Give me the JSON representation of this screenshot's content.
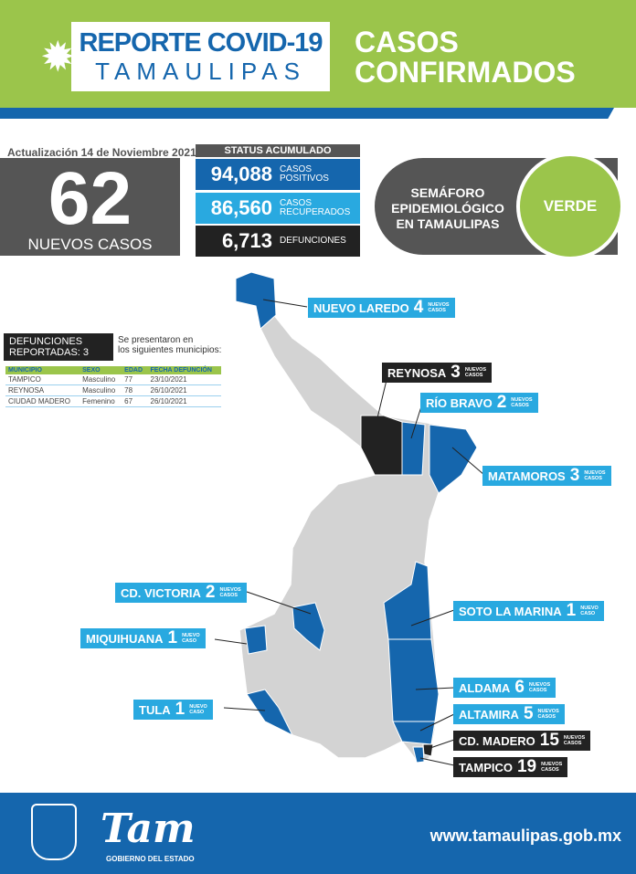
{
  "header": {
    "title_line1": "REPORTE COVID-19",
    "title_line2": "TAMAULIPAS",
    "subtitle_line1": "CASOS",
    "subtitle_line2": "CONFIRMADOS"
  },
  "update": "Actualización 14 de Noviembre 2021",
  "new_cases": {
    "value": "62",
    "label": "NUEVOS CASOS"
  },
  "status": {
    "title": "STATUS ACUMULADO",
    "items": [
      {
        "value": "94,088",
        "label1": "CASOS",
        "label2": "POSITIVOS",
        "color": "#1566ad"
      },
      {
        "value": "86,560",
        "label1": "CASOS",
        "label2": "RECUPERADOS",
        "color": "#29a9e0"
      },
      {
        "value": "6,713",
        "label1": "DEFUNCIONES",
        "label2": "",
        "color": "#222222"
      }
    ]
  },
  "semaforo": {
    "line1": "SEMÁFORO",
    "line2": "EPIDEMIOLÓGICO",
    "line3": "EN TAMAULIPAS",
    "status": "VERDE",
    "color": "#9bc54b"
  },
  "deaths": {
    "title1": "DEFUNCIONES",
    "title2": "REPORTADAS: 3",
    "note1": "Se presentaron en",
    "note2": "los siguientes municipios:",
    "columns": [
      "MUNICIPIO",
      "SEXO",
      "EDAD",
      "FECHA DEFUNCIÓN"
    ],
    "rows": [
      [
        "TAMPICO",
        "Masculino",
        "77",
        "23/10/2021"
      ],
      [
        "REYNOSA",
        "Masculino",
        "78",
        "26/10/2021"
      ],
      [
        "CIUDAD MADERO",
        "Femenino",
        "67",
        "26/10/2021"
      ]
    ]
  },
  "map_labels": [
    {
      "name": "NUEVO LAREDO",
      "count": "4",
      "unit1": "NUEVOS",
      "unit2": "CASOS"
    },
    {
      "name": "REYNOSA",
      "count": "3",
      "unit1": "NUEVOS",
      "unit2": "CASOS"
    },
    {
      "name": "RÍO BRAVO",
      "count": "2",
      "unit1": "NUEVOS",
      "unit2": "CASOS"
    },
    {
      "name": "MATAMOROS",
      "count": "3",
      "unit1": "NUEVOS",
      "unit2": "CASOS"
    },
    {
      "name": "CD. VICTORIA",
      "count": "2",
      "unit1": "NUEVOS",
      "unit2": "CASOS"
    },
    {
      "name": "SOTO LA MARINA",
      "count": "1",
      "unit1": "NUEVO",
      "unit2": "CASO"
    },
    {
      "name": "MIQUIHUANA",
      "count": "1",
      "unit1": "NUEVO",
      "unit2": "CASO"
    },
    {
      "name": "ALDAMA",
      "count": "6",
      "unit1": "NUEVOS",
      "unit2": "CASOS"
    },
    {
      "name": "ALTAMIRA",
      "count": "5",
      "unit1": "NUEVOS",
      "unit2": "CASOS"
    },
    {
      "name": "TULA",
      "count": "1",
      "unit1": "NUEVO",
      "unit2": "CASO"
    },
    {
      "name": "CD. MADERO",
      "count": "15",
      "unit1": "NUEVOS",
      "unit2": "CASOS"
    },
    {
      "name": "TAMPICO",
      "count": "19",
      "unit1": "NUEVOS",
      "unit2": "CASOS"
    }
  ],
  "footer": {
    "logo": "Tam",
    "gov": "GOBIERNO DEL ESTADO",
    "url": "www.tamaulipas.gob.mx"
  }
}
